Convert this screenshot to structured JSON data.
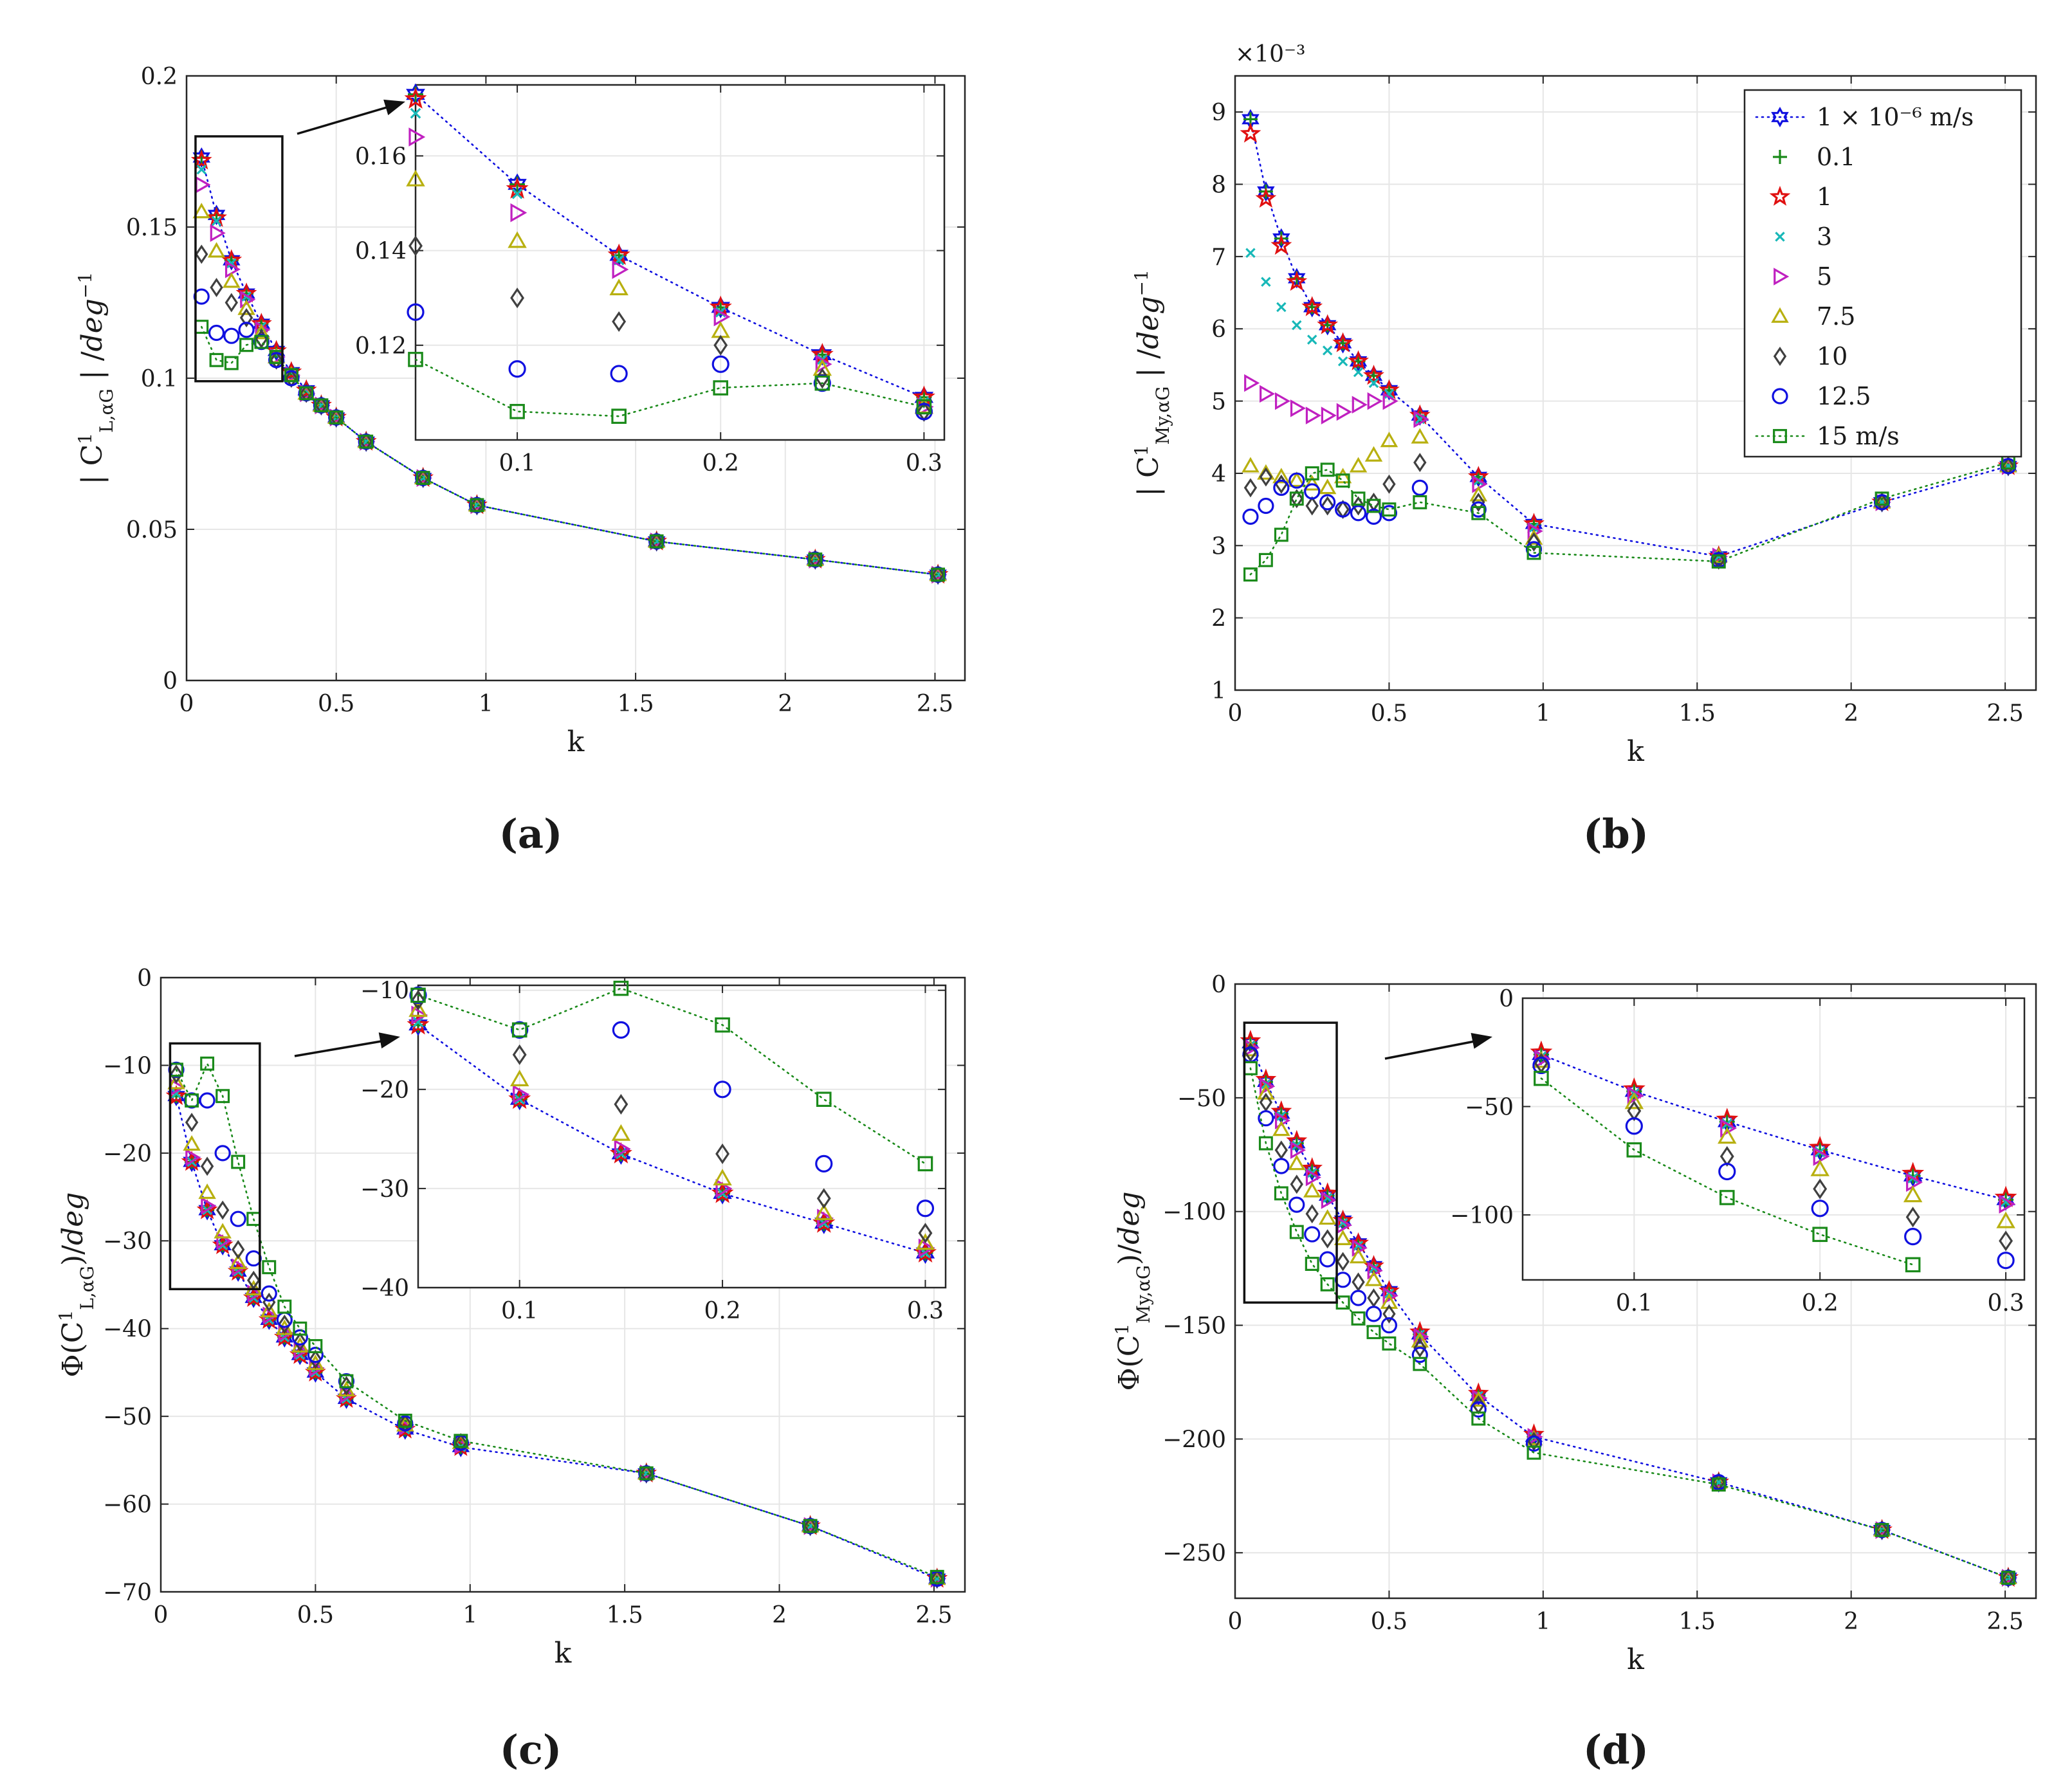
{
  "figure": {
    "x_values": [
      0.05,
      0.1,
      0.15,
      0.2,
      0.25,
      0.3,
      0.35,
      0.4,
      0.45,
      0.5,
      0.6,
      0.79,
      0.97,
      1.57,
      2.1,
      2.51
    ],
    "legend": {
      "entries": [
        {
          "label": "1 × 10⁻⁶ m/s",
          "color": "#1010e0",
          "marker": "hexagram"
        },
        {
          "label": "0.1",
          "color": "#1a8a1a",
          "marker": "plus"
        },
        {
          "label": "1",
          "color": "#e01010",
          "marker": "star"
        },
        {
          "label": "3",
          "color": "#18b8b8",
          "marker": "cross"
        },
        {
          "label": "5",
          "color": "#c020c0",
          "marker": "triangle-right"
        },
        {
          "label": "7.5",
          "color": "#b8b010",
          "marker": "triangle-up"
        },
        {
          "label": "10",
          "color": "#404040",
          "marker": "diamond"
        },
        {
          "label": "12.5",
          "color": "#1010e0",
          "marker": "circle"
        },
        {
          "label": "15 m/s",
          "color": "#1a8a1a",
          "marker": "square"
        }
      ]
    }
  },
  "chart_data": [
    {
      "id": "a",
      "type": "scatter",
      "panel_label": "(a)",
      "xlabel": "k",
      "ylabel": "| C¹_{L,αG} | /deg⁻¹",
      "xlim": [
        0,
        2.6
      ],
      "ylim": [
        0,
        0.2
      ],
      "xticks": [
        "0",
        "0.5",
        "1",
        "1.5",
        "2",
        "2.5"
      ],
      "yticks": [
        "0",
        "0.05",
        "0.1",
        "0.15",
        "0.2"
      ],
      "series": [
        {
          "name": "1e-6",
          "values": [
            0.173,
            0.154,
            0.139,
            0.128,
            0.118,
            0.109,
            0.102,
            0.096,
            0.091,
            0.087,
            0.079,
            0.067,
            0.058,
            0.046,
            0.04,
            0.035
          ]
        },
        {
          "name": "0.1",
          "values": [
            0.173,
            0.154,
            0.139,
            0.128,
            0.118,
            0.109,
            0.102,
            0.096,
            0.091,
            0.087,
            0.079,
            0.067,
            0.058,
            0.046,
            0.04,
            0.035
          ]
        },
        {
          "name": "1",
          "values": [
            0.172,
            0.153,
            0.139,
            0.128,
            0.118,
            0.109,
            0.102,
            0.096,
            0.091,
            0.087,
            0.079,
            0.067,
            0.058,
            0.046,
            0.04,
            0.035
          ]
        },
        {
          "name": "3",
          "values": [
            0.169,
            0.152,
            0.138,
            0.127,
            0.117,
            0.108,
            0.102,
            0.096,
            0.091,
            0.087,
            0.079,
            0.067,
            0.058,
            0.046,
            0.04,
            0.035
          ]
        },
        {
          "name": "5",
          "values": [
            0.164,
            0.148,
            0.136,
            0.126,
            0.116,
            0.107,
            0.101,
            0.095,
            0.091,
            0.087,
            0.079,
            0.067,
            0.058,
            0.046,
            0.04,
            0.035
          ]
        },
        {
          "name": "7.5",
          "values": [
            0.155,
            0.142,
            0.132,
            0.123,
            0.115,
            0.107,
            0.101,
            0.095,
            0.091,
            0.087,
            0.079,
            0.067,
            0.058,
            0.046,
            0.04,
            0.035
          ]
        },
        {
          "name": "10",
          "values": [
            0.141,
            0.13,
            0.125,
            0.12,
            0.113,
            0.106,
            0.1,
            0.095,
            0.091,
            0.087,
            0.079,
            0.067,
            0.058,
            0.046,
            0.04,
            0.035
          ]
        },
        {
          "name": "12.5",
          "values": [
            0.127,
            0.115,
            0.114,
            0.116,
            0.112,
            0.106,
            0.1,
            0.095,
            0.091,
            0.087,
            0.079,
            0.067,
            0.058,
            0.046,
            0.04,
            0.035
          ]
        },
        {
          "name": "15",
          "values": [
            0.117,
            0.106,
            0.105,
            0.111,
            0.112,
            0.107,
            0.101,
            0.095,
            0.091,
            0.087,
            0.079,
            0.067,
            0.058,
            0.046,
            0.04,
            0.035
          ]
        }
      ],
      "inset": {
        "xlim": [
          0.05,
          0.31
        ],
        "ylim": [
          0.1,
          0.175
        ],
        "xticks": [
          "0.1",
          "0.2",
          "0.3"
        ],
        "yticks": [
          "0.12",
          "0.14",
          "0.16"
        ]
      }
    },
    {
      "id": "b",
      "type": "scatter",
      "panel_label": "(b)",
      "xlabel": "k",
      "ylabel": "| C¹_{My,αG} | /deg⁻¹",
      "exponent_label": "×10⁻³",
      "xlim": [
        0,
        2.6
      ],
      "ylim": [
        1,
        9.5
      ],
      "xticks": [
        "0",
        "0.5",
        "1",
        "1.5",
        "2",
        "2.5"
      ],
      "yticks": [
        "1",
        "2",
        "3",
        "4",
        "5",
        "6",
        "7",
        "8",
        "9"
      ],
      "series": [
        {
          "name": "1e-6",
          "values": [
            8.9,
            7.9,
            7.25,
            6.7,
            6.3,
            6.05,
            5.8,
            5.55,
            5.35,
            5.15,
            4.8,
            3.95,
            3.3,
            2.85,
            3.6,
            4.1
          ]
        },
        {
          "name": "0.1",
          "values": [
            8.9,
            7.9,
            7.25,
            6.7,
            6.3,
            6.05,
            5.8,
            5.55,
            5.35,
            5.15,
            4.8,
            3.95,
            3.3,
            2.85,
            3.6,
            4.1
          ]
        },
        {
          "name": "1",
          "values": [
            8.7,
            7.8,
            7.15,
            6.65,
            6.3,
            6.05,
            5.8,
            5.55,
            5.35,
            5.15,
            4.8,
            3.95,
            3.3,
            2.85,
            3.6,
            4.1
          ]
        },
        {
          "name": "3",
          "values": [
            7.05,
            6.65,
            6.3,
            6.05,
            5.85,
            5.7,
            5.55,
            5.4,
            5.25,
            5.1,
            4.75,
            3.9,
            3.25,
            2.85,
            3.6,
            4.1
          ]
        },
        {
          "name": "5",
          "values": [
            5.25,
            5.1,
            5.0,
            4.9,
            4.8,
            4.8,
            4.85,
            4.95,
            5.0,
            5.0,
            4.75,
            3.85,
            3.2,
            2.85,
            3.6,
            4.1
          ]
        },
        {
          "name": "7.5",
          "values": [
            4.1,
            4.0,
            3.95,
            3.9,
            3.85,
            3.8,
            3.95,
            4.1,
            4.25,
            4.45,
            4.5,
            3.7,
            3.1,
            2.85,
            3.6,
            4.1
          ]
        },
        {
          "name": "10",
          "values": [
            3.8,
            3.95,
            3.85,
            3.65,
            3.55,
            3.55,
            3.5,
            3.55,
            3.6,
            3.85,
            4.15,
            3.6,
            3.05,
            2.8,
            3.6,
            4.1
          ]
        },
        {
          "name": "12.5",
          "values": [
            3.4,
            3.55,
            3.8,
            3.9,
            3.75,
            3.6,
            3.5,
            3.45,
            3.4,
            3.45,
            3.8,
            3.5,
            2.95,
            2.8,
            3.6,
            4.1
          ]
        },
        {
          "name": "15",
          "values": [
            2.6,
            2.8,
            3.15,
            3.65,
            4.0,
            4.05,
            3.9,
            3.65,
            3.55,
            3.5,
            3.6,
            3.45,
            2.9,
            2.78,
            3.65,
            4.15
          ]
        }
      ]
    },
    {
      "id": "c",
      "type": "scatter",
      "panel_label": "(c)",
      "xlabel": "k",
      "ylabel": "Φ(C¹_{L,αG})/deg",
      "xlim": [
        0,
        2.6
      ],
      "ylim": [
        -70,
        0
      ],
      "xticks": [
        "0",
        "0.5",
        "1",
        "1.5",
        "2",
        "2.5"
      ],
      "yticks": [
        "0",
        "-10",
        "-20",
        "-30",
        "-40",
        "-50",
        "-60",
        "-70"
      ],
      "series": [
        {
          "name": "1e-6",
          "values": [
            -13.5,
            -21.0,
            -26.5,
            -30.5,
            -33.5,
            -36.5,
            -39.0,
            -41.0,
            -43.0,
            -45.0,
            -48.0,
            -51.5,
            -53.5,
            -56.5,
            -62.5,
            -68.5
          ]
        },
        {
          "name": "0.1",
          "values": [
            -13.5,
            -21.0,
            -26.5,
            -30.5,
            -33.5,
            -36.5,
            -39.0,
            -41.0,
            -43.0,
            -45.0,
            -48.0,
            -51.5,
            -53.5,
            -56.5,
            -62.5,
            -68.5
          ]
        },
        {
          "name": "1",
          "values": [
            -13.5,
            -21.0,
            -26.5,
            -30.5,
            -33.5,
            -36.5,
            -39.0,
            -41.0,
            -43.0,
            -45.0,
            -48.0,
            -51.5,
            -53.5,
            -56.5,
            -62.5,
            -68.5
          ]
        },
        {
          "name": "3",
          "values": [
            -13.2,
            -21.0,
            -26.5,
            -30.5,
            -33.5,
            -36.5,
            -39.0,
            -41.0,
            -43.0,
            -45.0,
            -48.0,
            -51.5,
            -53.5,
            -56.5,
            -62.5,
            -68.5
          ]
        },
        {
          "name": "5",
          "values": [
            -12.5,
            -20.5,
            -26.0,
            -30.0,
            -33.0,
            -36.0,
            -38.5,
            -40.5,
            -42.5,
            -44.5,
            -47.5,
            -51.2,
            -53.3,
            -56.5,
            -62.5,
            -68.5
          ]
        },
        {
          "name": "7.5",
          "values": [
            -12.0,
            -19.0,
            -24.5,
            -29.0,
            -32.5,
            -35.5,
            -38.0,
            -40.0,
            -42.0,
            -44.0,
            -47.0,
            -51.0,
            -53.0,
            -56.5,
            -62.5,
            -68.5
          ]
        },
        {
          "name": "10",
          "values": [
            -11.0,
            -16.5,
            -21.5,
            -26.5,
            -31.0,
            -34.5,
            -37.0,
            -39.5,
            -41.5,
            -43.5,
            -46.5,
            -50.8,
            -53.0,
            -56.5,
            -62.5,
            -68.5
          ]
        },
        {
          "name": "12.5",
          "values": [
            -10.5,
            -14.0,
            -14.0,
            -20.0,
            -27.5,
            -32.0,
            -36.0,
            -39.0,
            -41.0,
            -43.0,
            -46.0,
            -50.8,
            -53.0,
            -56.5,
            -62.5,
            -68.5
          ]
        },
        {
          "name": "15",
          "values": [
            -10.5,
            -14.0,
            -9.8,
            -13.5,
            -21.0,
            -27.5,
            -33.0,
            -37.5,
            -40.0,
            -42.0,
            -46.0,
            -50.5,
            -52.8,
            -56.5,
            -62.5,
            -68.3
          ]
        }
      ],
      "inset": {
        "xlim": [
          0.05,
          0.31
        ],
        "ylim": [
          -40,
          -9.5
        ],
        "xticks": [
          "0.1",
          "0.2",
          "0.3"
        ],
        "yticks": [
          "-10",
          "-20",
          "-30",
          "-40"
        ]
      }
    },
    {
      "id": "d",
      "type": "scatter",
      "panel_label": "(d)",
      "xlabel": "k",
      "ylabel": "Φ(C¹_{My,αG})/deg",
      "xlim": [
        0,
        2.6
      ],
      "ylim": [
        -270,
        0
      ],
      "xticks": [
        "0",
        "0.5",
        "1",
        "1.5",
        "2",
        "2.5"
      ],
      "yticks": [
        "0",
        "-50",
        "-100",
        "-150",
        "-200",
        "-250"
      ],
      "series": [
        {
          "name": "1e-6",
          "values": [
            -26,
            -43,
            -57,
            -70,
            -82,
            -93,
            -104,
            -114,
            -124,
            -135,
            -154,
            -181,
            -199,
            -219,
            -240,
            -261
          ]
        },
        {
          "name": "0.1",
          "values": [
            -26,
            -43,
            -57,
            -70,
            -82,
            -93,
            -104,
            -114,
            -124,
            -135,
            -154,
            -181,
            -199,
            -219,
            -240,
            -261
          ]
        },
        {
          "name": "1",
          "values": [
            -25,
            -42,
            -56,
            -69,
            -81,
            -92,
            -104,
            -114,
            -124,
            -135,
            -153,
            -180,
            -198,
            -219,
            -240,
            -261
          ]
        },
        {
          "name": "3",
          "values": [
            -27,
            -44,
            -58,
            -71,
            -83,
            -94,
            -105,
            -115,
            -125,
            -136,
            -154,
            -181,
            -199,
            -219,
            -240,
            -261
          ]
        },
        {
          "name": "5",
          "values": [
            -28,
            -45,
            -60,
            -73,
            -85,
            -95,
            -106,
            -116,
            -126,
            -137,
            -155,
            -182,
            -199,
            -219,
            -240,
            -261
          ]
        },
        {
          "name": "7.5",
          "values": [
            -29,
            -48,
            -64,
            -79,
            -91,
            -103,
            -112,
            -120,
            -130,
            -140,
            -157,
            -183,
            -200,
            -219,
            -240,
            -261
          ]
        },
        {
          "name": "10",
          "values": [
            -30,
            -52,
            -73,
            -88,
            -101,
            -112,
            -122,
            -131,
            -138,
            -145,
            -160,
            -185,
            -201,
            -219,
            -240,
            -261
          ]
        },
        {
          "name": "12.5",
          "values": [
            -31,
            -59,
            -80,
            -97,
            -110,
            -121,
            -130,
            -138,
            -145,
            -150,
            -163,
            -187,
            -202,
            -219,
            -240,
            -261
          ]
        },
        {
          "name": "15",
          "values": [
            -37,
            -70,
            -92,
            -109,
            -123,
            -132,
            -140,
            -147,
            -153,
            -158,
            -167,
            -191,
            -206,
            -220,
            -240,
            -261
          ]
        }
      ],
      "inset": {
        "xlim": [
          0.04,
          0.31
        ],
        "ylim": [
          -130,
          0
        ],
        "xticks": [
          "0.1",
          "0.2",
          "0.3"
        ],
        "yticks": [
          "0",
          "-50",
          "-100"
        ]
      }
    }
  ]
}
